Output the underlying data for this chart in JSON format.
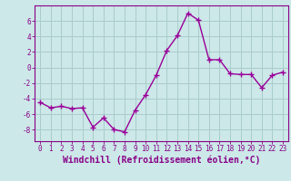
{
  "x": [
    0,
    1,
    2,
    3,
    4,
    5,
    6,
    7,
    8,
    9,
    10,
    11,
    12,
    13,
    14,
    15,
    16,
    17,
    18,
    19,
    20,
    21,
    22,
    23
  ],
  "y": [
    -4.5,
    -5.2,
    -5.0,
    -5.3,
    -5.2,
    -7.7,
    -6.5,
    -8.0,
    -8.3,
    -5.5,
    -3.5,
    -1.0,
    2.2,
    4.1,
    7.0,
    6.1,
    1.0,
    1.0,
    -0.8,
    -0.9,
    -0.9,
    -2.6,
    -1.0,
    -0.6
  ],
  "line_color": "#990099",
  "marker": "+",
  "markersize": 4,
  "linewidth": 1.0,
  "xlabel": "Windchill (Refroidissement éolien,°C)",
  "xlabel_fontsize": 7,
  "yticks": [
    -8,
    -6,
    -4,
    -2,
    0,
    2,
    4,
    6
  ],
  "xtick_labels": [
    "0",
    "1",
    "2",
    "3",
    "4",
    "5",
    "6",
    "7",
    "8",
    "9",
    "10",
    "11",
    "12",
    "13",
    "14",
    "15",
    "16",
    "17",
    "18",
    "19",
    "20",
    "21",
    "22",
    "23"
  ],
  "ylim": [
    -9.5,
    8.0
  ],
  "xlim": [
    -0.5,
    23.5
  ],
  "bg_color": "#cce8e8",
  "grid_color": "#aacccc",
  "tick_fontsize": 5.5,
  "tick_color": "#880088",
  "spine_color": "#880088",
  "xlabel_color": "#880088"
}
